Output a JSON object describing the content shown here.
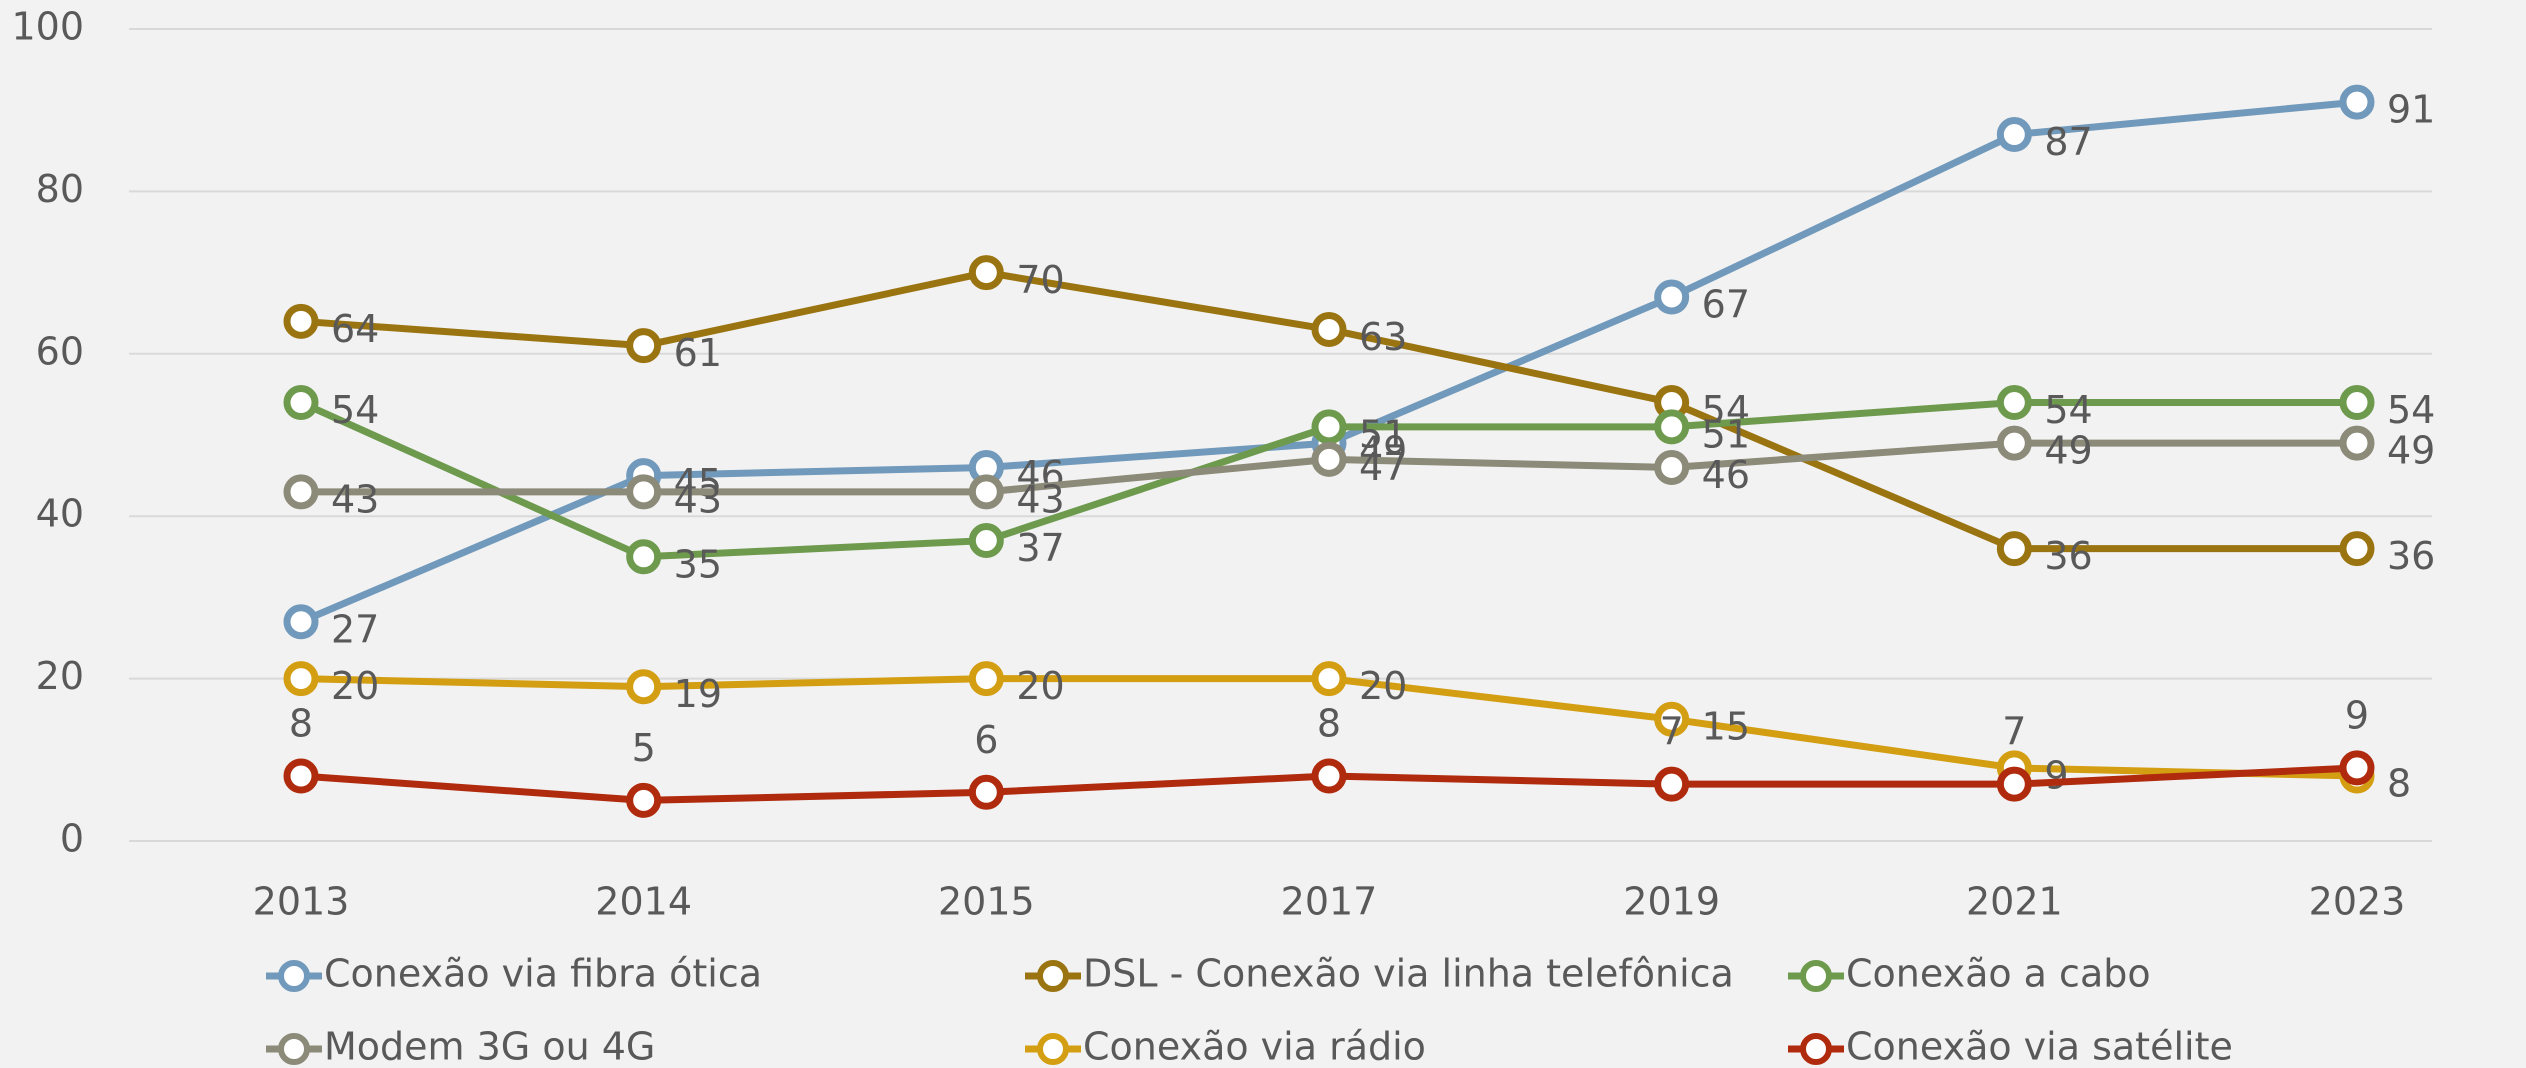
{
  "chart_data": {
    "type": "line",
    "categories": [
      "2013",
      "2014",
      "2015",
      "2017",
      "2019",
      "2021",
      "2023"
    ],
    "series": [
      {
        "name": "Conexão via fibra ótica",
        "color": "#7199bb",
        "values": [
          27,
          45,
          46,
          49,
          67,
          87,
          91
        ]
      },
      {
        "name": "DSL - Conexão via linha telefônica",
        "color": "#9a7410",
        "values": [
          64,
          61,
          70,
          63,
          54,
          36,
          36
        ]
      },
      {
        "name": "Conexão a cabo",
        "color": "#6e9a4e",
        "values": [
          54,
          35,
          37,
          51,
          51,
          54,
          54
        ]
      },
      {
        "name": "Modem 3G ou 4G",
        "color": "#8c8a78",
        "values": [
          43,
          43,
          43,
          47,
          46,
          49,
          49
        ]
      },
      {
        "name": "Conexão via rádio",
        "color": "#d49e13",
        "values": [
          20,
          19,
          20,
          20,
          15,
          9,
          8
        ]
      },
      {
        "name": "Conexão via satélite",
        "color": "#b02a0d",
        "values": [
          8,
          5,
          6,
          8,
          7,
          7,
          9
        ]
      }
    ],
    "ylim": [
      0,
      100
    ],
    "yticks": [
      0,
      20,
      40,
      60,
      80,
      100
    ],
    "grid": true,
    "legend": "bottom"
  }
}
